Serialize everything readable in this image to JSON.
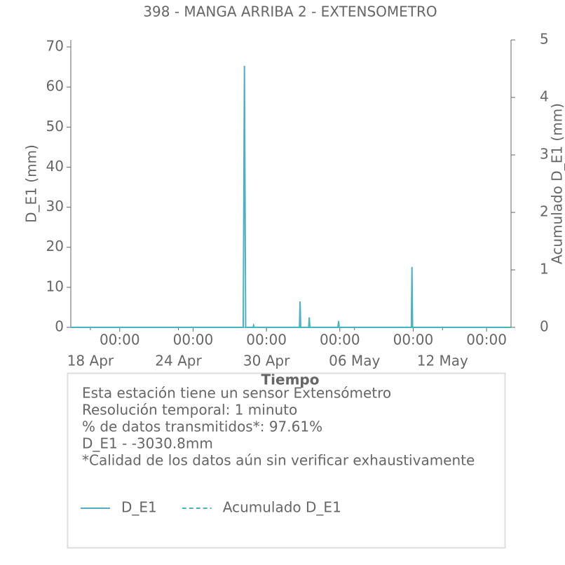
{
  "chart_data": {
    "type": "line",
    "title": "398 - MANGA ARRIBA 2 - EXTENSOMETRO",
    "x_label": "Tiempo",
    "y_label": "D_E1 (mm)",
    "y2_label": "Acumulado D_E1 (mm)",
    "x": [
      "16 Apr 16:00",
      "28 Apr 10:00",
      "28 Apr 12:00",
      "28 Apr 14:00",
      "29 Apr 02:00",
      "29 Apr 03:00",
      "29 Apr 04:00",
      "2 May 06:00",
      "2 May 07:00",
      "2 May 08:00",
      "2 May 21:00",
      "2 May 22:00",
      "2 May 23:00",
      "4 May 21:00",
      "4 May 22:00",
      "4 May 23:00",
      "9 May 21:00",
      "9 May 22:00",
      "9 May 23:00",
      "16 May 16:00"
    ],
    "series": [
      {
        "name": "D_E1",
        "color": "#4bb3c0",
        "dash": false,
        "values": [
          0,
          0,
          65.3,
          0,
          0,
          0.5,
          0,
          0,
          6.5,
          0,
          0,
          2.5,
          0,
          0,
          1.6,
          0,
          0,
          15.1,
          0,
          0
        ]
      },
      {
        "name": "Acumulado D_E1",
        "color": "#4bb3c0",
        "dash": true,
        "axis": "y2",
        "values": [
          0,
          0,
          0,
          0,
          0,
          0,
          0,
          0,
          0,
          0,
          0,
          0,
          0,
          0,
          0,
          0,
          0,
          0,
          0,
          0
        ]
      }
    ],
    "xlim": [
      "16 Apr 16:00",
      "16 May 16:00"
    ],
    "xticks": [
      {
        "value": "20 Apr 00:00",
        "label": "00:00"
      },
      {
        "value": "25 Apr 00:00",
        "label": "00:00"
      },
      {
        "value": "30 Apr 00:00",
        "label": "00:00"
      },
      {
        "value": "5 May 00:00",
        "label": "00:00"
      },
      {
        "value": "10 May 00:00",
        "label": "00:00"
      },
      {
        "value": "15 May 00:00",
        "label": "00:00"
      }
    ],
    "xdate_ticks": [
      {
        "value": "18 Apr 00:00",
        "label": "18 Apr"
      },
      {
        "value": "24 Apr 00:00",
        "label": "24 Apr"
      },
      {
        "value": "30 Apr 00:00",
        "label": "30 Apr"
      },
      {
        "value": "6 May 00:00",
        "label": "06 May"
      },
      {
        "value": "12 May 00:00",
        "label": "12 May"
      }
    ],
    "ylim": [
      0,
      71.75
    ],
    "yticks": [
      0,
      10,
      20,
      30,
      40,
      50,
      60,
      70
    ],
    "y2lim": [
      0,
      5
    ],
    "y2ticks": [
      0,
      1,
      2,
      3,
      4,
      5
    ],
    "info": [
      "Esta estación tiene un sensor Extensómetro",
      "Resolución temporal: 1 minuto",
      "% de datos transmitidos*: 97.61%",
      "D_E1 - -3030.8mm",
      "*Calidad de los datos aún sin verificar exhaustivamente"
    ]
  }
}
